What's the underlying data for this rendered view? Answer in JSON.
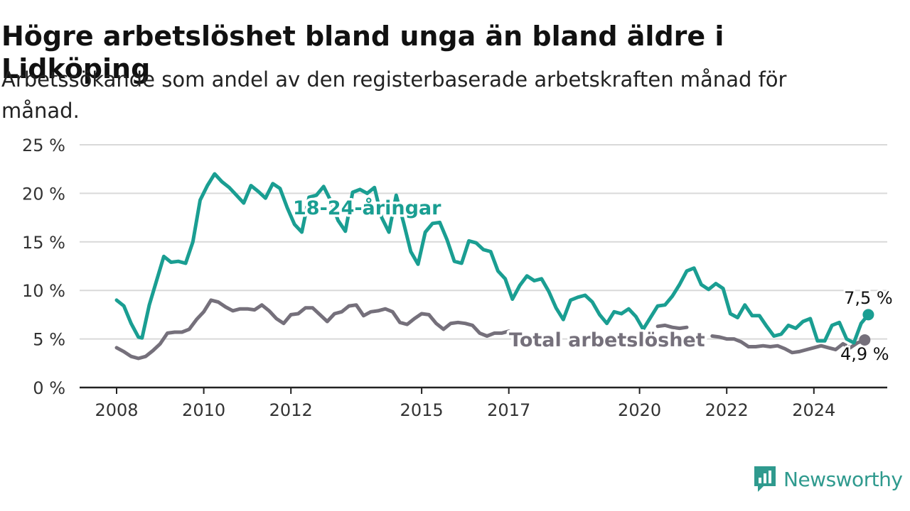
{
  "header": {
    "title": "Högre arbetslöshet bland unga än bland äldre i Lidköping",
    "subtitle": "Arbetssökande som andel av den registerbaserade arbetskraften månad för månad."
  },
  "brand": {
    "name": "Newsworthy",
    "icon": "newsworthy-logo-icon",
    "color": "#2f9a8e"
  },
  "chart_data": {
    "type": "line",
    "title": "Högre arbetslöshet bland unga än bland äldre i Lidköping",
    "subtitle": "Arbetssökande som andel av den registerbaserade arbetskraften månad för månad.",
    "xlabel": "",
    "ylabel": "",
    "xlim": [
      "2008-01",
      "2024-12"
    ],
    "ylim": [
      0,
      25
    ],
    "y_ticks": [
      0,
      5,
      10,
      15,
      20,
      25
    ],
    "y_tick_labels": [
      "0 %",
      "5 %",
      "10 %",
      "15 %",
      "20 %",
      "25 %"
    ],
    "x_ticks": [
      "2008-01",
      "2010-01",
      "2012-01",
      "2015-01",
      "2017-01",
      "2020-01",
      "2022-01",
      "2024-01"
    ],
    "x_tick_labels": [
      "2008",
      "2010",
      "2012",
      "2015",
      "2017",
      "2020",
      "2022",
      "2024"
    ],
    "grid": true,
    "legend": "inline labels",
    "series": [
      {
        "name": "18-24-åringar",
        "color": "#1a9e92",
        "label_position": "inline",
        "end_label": "7,5 %",
        "points": [
          [
            "2008-01",
            9.0
          ],
          [
            "2008-03",
            8.4
          ],
          [
            "2008-05",
            6.6
          ],
          [
            "2008-07",
            5.2
          ],
          [
            "2008-08",
            5.1
          ],
          [
            "2008-10",
            8.5
          ],
          [
            "2008-12",
            11.0
          ],
          [
            "2009-02",
            13.5
          ],
          [
            "2009-04",
            12.9
          ],
          [
            "2009-06",
            13.0
          ],
          [
            "2009-08",
            12.8
          ],
          [
            "2009-10",
            15.0
          ],
          [
            "2009-12",
            19.3
          ],
          [
            "2010-02",
            20.8
          ],
          [
            "2010-04",
            22.0
          ],
          [
            "2010-06",
            21.2
          ],
          [
            "2010-08",
            20.6
          ],
          [
            "2010-10",
            19.8
          ],
          [
            "2010-12",
            19.0
          ],
          [
            "2011-02",
            20.8
          ],
          [
            "2011-04",
            20.2
          ],
          [
            "2011-06",
            19.5
          ],
          [
            "2011-08",
            21.0
          ],
          [
            "2011-10",
            20.5
          ],
          [
            "2011-12",
            18.5
          ],
          [
            "2012-02",
            16.8
          ],
          [
            "2012-04",
            16.0
          ],
          [
            "2012-06",
            19.6
          ],
          [
            "2012-08",
            19.8
          ],
          [
            "2012-10",
            20.7
          ],
          [
            "2012-12",
            19.2
          ],
          [
            "2013-02",
            17.2
          ],
          [
            "2013-04",
            16.1
          ],
          [
            "2013-06",
            20.1
          ],
          [
            "2013-08",
            20.4
          ],
          [
            "2013-10",
            20.0
          ],
          [
            "2013-12",
            20.6
          ],
          [
            "2014-02",
            17.5
          ],
          [
            "2014-04",
            16.0
          ],
          [
            "2014-06",
            19.8
          ],
          [
            "2014-08",
            17.0
          ],
          [
            "2014-10",
            14.0
          ],
          [
            "2014-12",
            12.7
          ],
          [
            "2015-02",
            16.0
          ],
          [
            "2015-04",
            16.9
          ],
          [
            "2015-06",
            17.0
          ],
          [
            "2015-08",
            15.2
          ],
          [
            "2015-10",
            13.0
          ],
          [
            "2015-12",
            12.8
          ],
          [
            "2016-02",
            15.1
          ],
          [
            "2016-04",
            14.9
          ],
          [
            "2016-06",
            14.2
          ],
          [
            "2016-08",
            14.0
          ],
          [
            "2016-10",
            12.0
          ],
          [
            "2016-12",
            11.2
          ],
          [
            "2017-02",
            9.1
          ],
          [
            "2017-04",
            10.5
          ],
          [
            "2017-06",
            11.5
          ],
          [
            "2017-08",
            11.0
          ],
          [
            "2017-10",
            11.2
          ],
          [
            "2017-12",
            9.9
          ],
          [
            "2018-02",
            8.2
          ],
          [
            "2018-04",
            7.0
          ],
          [
            "2018-06",
            9.0
          ],
          [
            "2018-08",
            9.3
          ],
          [
            "2018-10",
            9.5
          ],
          [
            "2018-12",
            8.8
          ],
          [
            "2019-02",
            7.5
          ],
          [
            "2019-04",
            6.6
          ],
          [
            "2019-06",
            7.8
          ],
          [
            "2019-08",
            7.6
          ],
          [
            "2019-10",
            8.1
          ],
          [
            "2019-12",
            7.3
          ],
          [
            "2020-02",
            6.0
          ],
          [
            "2020-04",
            7.2
          ],
          [
            "2020-06",
            8.4
          ],
          [
            "2020-08",
            8.5
          ],
          [
            "2020-10",
            9.4
          ],
          [
            "2020-12",
            10.6
          ],
          [
            "2021-02",
            12.0
          ],
          [
            "2021-04",
            12.3
          ],
          [
            "2021-06",
            10.6
          ],
          [
            "2021-08",
            10.1
          ],
          [
            "2021-10",
            10.7
          ],
          [
            "2021-12",
            10.2
          ],
          [
            "2022-02",
            7.6
          ],
          [
            "2022-04",
            7.2
          ],
          [
            "2022-06",
            8.5
          ],
          [
            "2022-08",
            7.4
          ],
          [
            "2022-10",
            7.4
          ],
          [
            "2022-12",
            6.3
          ],
          [
            "2023-02",
            5.3
          ],
          [
            "2023-04",
            5.5
          ],
          [
            "2023-06",
            6.4
          ],
          [
            "2023-08",
            6.1
          ],
          [
            "2023-10",
            6.8
          ],
          [
            "2023-12",
            7.1
          ],
          [
            "2024-02",
            4.8
          ],
          [
            "2024-04",
            4.8
          ],
          [
            "2024-06",
            6.4
          ],
          [
            "2024-08",
            6.7
          ],
          [
            "2024-10",
            5.0
          ],
          [
            "2024-12",
            4.6
          ],
          [
            "2025-02",
            6.6
          ],
          [
            "2025-04",
            7.5
          ]
        ]
      },
      {
        "name": "Total arbetslöshet",
        "color": "#75707b",
        "label_position": "inline",
        "end_label": "4,9 %",
        "points": [
          [
            "2008-01",
            4.1
          ],
          [
            "2008-03",
            3.7
          ],
          [
            "2008-05",
            3.2
          ],
          [
            "2008-07",
            3.0
          ],
          [
            "2008-09",
            3.2
          ],
          [
            "2008-11",
            3.8
          ],
          [
            "2009-01",
            4.5
          ],
          [
            "2009-03",
            5.6
          ],
          [
            "2009-05",
            5.7
          ],
          [
            "2009-07",
            5.7
          ],
          [
            "2009-09",
            6.0
          ],
          [
            "2009-11",
            7.0
          ],
          [
            "2010-01",
            7.8
          ],
          [
            "2010-03",
            9.0
          ],
          [
            "2010-05",
            8.8
          ],
          [
            "2010-07",
            8.3
          ],
          [
            "2010-09",
            7.9
          ],
          [
            "2010-11",
            8.1
          ],
          [
            "2011-01",
            8.1
          ],
          [
            "2011-03",
            8.0
          ],
          [
            "2011-05",
            8.5
          ],
          [
            "2011-07",
            7.9
          ],
          [
            "2011-09",
            7.1
          ],
          [
            "2011-11",
            6.6
          ],
          [
            "2012-01",
            7.5
          ],
          [
            "2012-03",
            7.6
          ],
          [
            "2012-05",
            8.2
          ],
          [
            "2012-07",
            8.2
          ],
          [
            "2012-09",
            7.5
          ],
          [
            "2012-11",
            6.8
          ],
          [
            "2013-01",
            7.6
          ],
          [
            "2013-03",
            7.8
          ],
          [
            "2013-05",
            8.4
          ],
          [
            "2013-07",
            8.5
          ],
          [
            "2013-09",
            7.4
          ],
          [
            "2013-11",
            7.8
          ],
          [
            "2014-01",
            7.9
          ],
          [
            "2014-03",
            8.1
          ],
          [
            "2014-05",
            7.8
          ],
          [
            "2014-07",
            6.7
          ],
          [
            "2014-09",
            6.5
          ],
          [
            "2014-11",
            7.1
          ],
          [
            "2015-01",
            7.6
          ],
          [
            "2015-03",
            7.5
          ],
          [
            "2015-05",
            6.6
          ],
          [
            "2015-07",
            6.0
          ],
          [
            "2015-09",
            6.6
          ],
          [
            "2015-11",
            6.7
          ],
          [
            "2016-01",
            6.6
          ],
          [
            "2016-03",
            6.4
          ],
          [
            "2016-05",
            5.6
          ],
          [
            "2016-07",
            5.3
          ],
          [
            "2016-09",
            5.6
          ],
          [
            "2016-11",
            5.6
          ],
          [
            "2017-01",
            5.8
          ],
          [
            "2020-06",
            6.3
          ],
          [
            "2020-08",
            6.4
          ],
          [
            "2020-10",
            6.2
          ],
          [
            "2020-12",
            6.1
          ],
          [
            "2021-02",
            6.2
          ],
          [
            "2021-09",
            5.3
          ],
          [
            "2021-11",
            5.2
          ],
          [
            "2022-01",
            5.0
          ],
          [
            "2022-03",
            5.0
          ],
          [
            "2022-05",
            4.7
          ],
          [
            "2022-07",
            4.2
          ],
          [
            "2022-09",
            4.2
          ],
          [
            "2022-11",
            4.3
          ],
          [
            "2023-01",
            4.2
          ],
          [
            "2023-03",
            4.3
          ],
          [
            "2023-05",
            4.0
          ],
          [
            "2023-07",
            3.6
          ],
          [
            "2023-09",
            3.7
          ],
          [
            "2023-11",
            3.9
          ],
          [
            "2024-01",
            4.1
          ],
          [
            "2024-03",
            4.3
          ],
          [
            "2024-05",
            4.1
          ],
          [
            "2024-07",
            3.9
          ],
          [
            "2024-09",
            4.5
          ],
          [
            "2024-11",
            4.1
          ],
          [
            "2025-01",
            4.6
          ],
          [
            "2025-03",
            4.9
          ]
        ]
      }
    ]
  }
}
